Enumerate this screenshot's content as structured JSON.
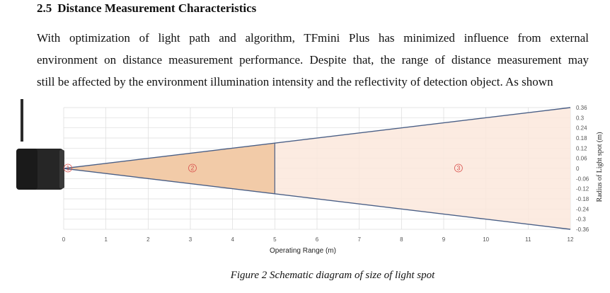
{
  "section": {
    "number": "2.5",
    "title": "Distance Measurement Characteristics"
  },
  "paragraph": {
    "line1": "With optimization of light path and algorithm, TFmini Plus has minimized influence from external",
    "line2": "environment on distance measurement performance. Despite that, the range of distance measurement may",
    "line3": "still be affected by the environment illumination intensity and the reflectivity of detection object. As shown"
  },
  "figure": {
    "caption": "Figure 2 Schematic diagram of size of light spot",
    "zone_labels": [
      "1",
      "2",
      "3"
    ],
    "colors": {
      "zone2_fill": "#f2cba8",
      "zone3_fill": "#fbe8dc",
      "cone_edge": "#4a5f86",
      "label_red": "#d9534f",
      "grid": "#dcdcdc"
    }
  },
  "chart_data": {
    "type": "area",
    "xlabel": "Operating Range (m)",
    "ylabel": "Radius of Light spot (m)",
    "xlim": [
      0,
      12
    ],
    "ylim": [
      -0.36,
      0.36
    ],
    "x_ticks": [
      0,
      1,
      2,
      3,
      4,
      5,
      6,
      7,
      8,
      9,
      10,
      11,
      12
    ],
    "y_ticks": [
      "0.36",
      "0.3",
      "0.24",
      "0.18",
      "0.12",
      "0.06",
      "0",
      "-0.06",
      "-0.12",
      "-0.18",
      "-0.24",
      "-0.3",
      "-0.36"
    ],
    "y_tick_values": [
      0.36,
      0.3,
      0.24,
      0.18,
      0.12,
      0.06,
      0,
      -0.06,
      -0.12,
      -0.18,
      -0.24,
      -0.3,
      -0.36
    ],
    "cone_upper": {
      "x": [
        0,
        5,
        12
      ],
      "y": [
        0,
        0.15,
        0.36
      ]
    },
    "cone_lower": {
      "x": [
        0,
        5,
        12
      ],
      "y": [
        0,
        -0.15,
        -0.36
      ]
    },
    "zones": [
      {
        "label": "1",
        "x_start": 0,
        "x_end": 0,
        "label_x": 0.1
      },
      {
        "label": "2",
        "x_start": 0,
        "x_end": 5,
        "label_x": 3.05
      },
      {
        "label": "3",
        "x_start": 5,
        "x_end": 12,
        "label_x": 9.35
      }
    ],
    "grid": true
  }
}
